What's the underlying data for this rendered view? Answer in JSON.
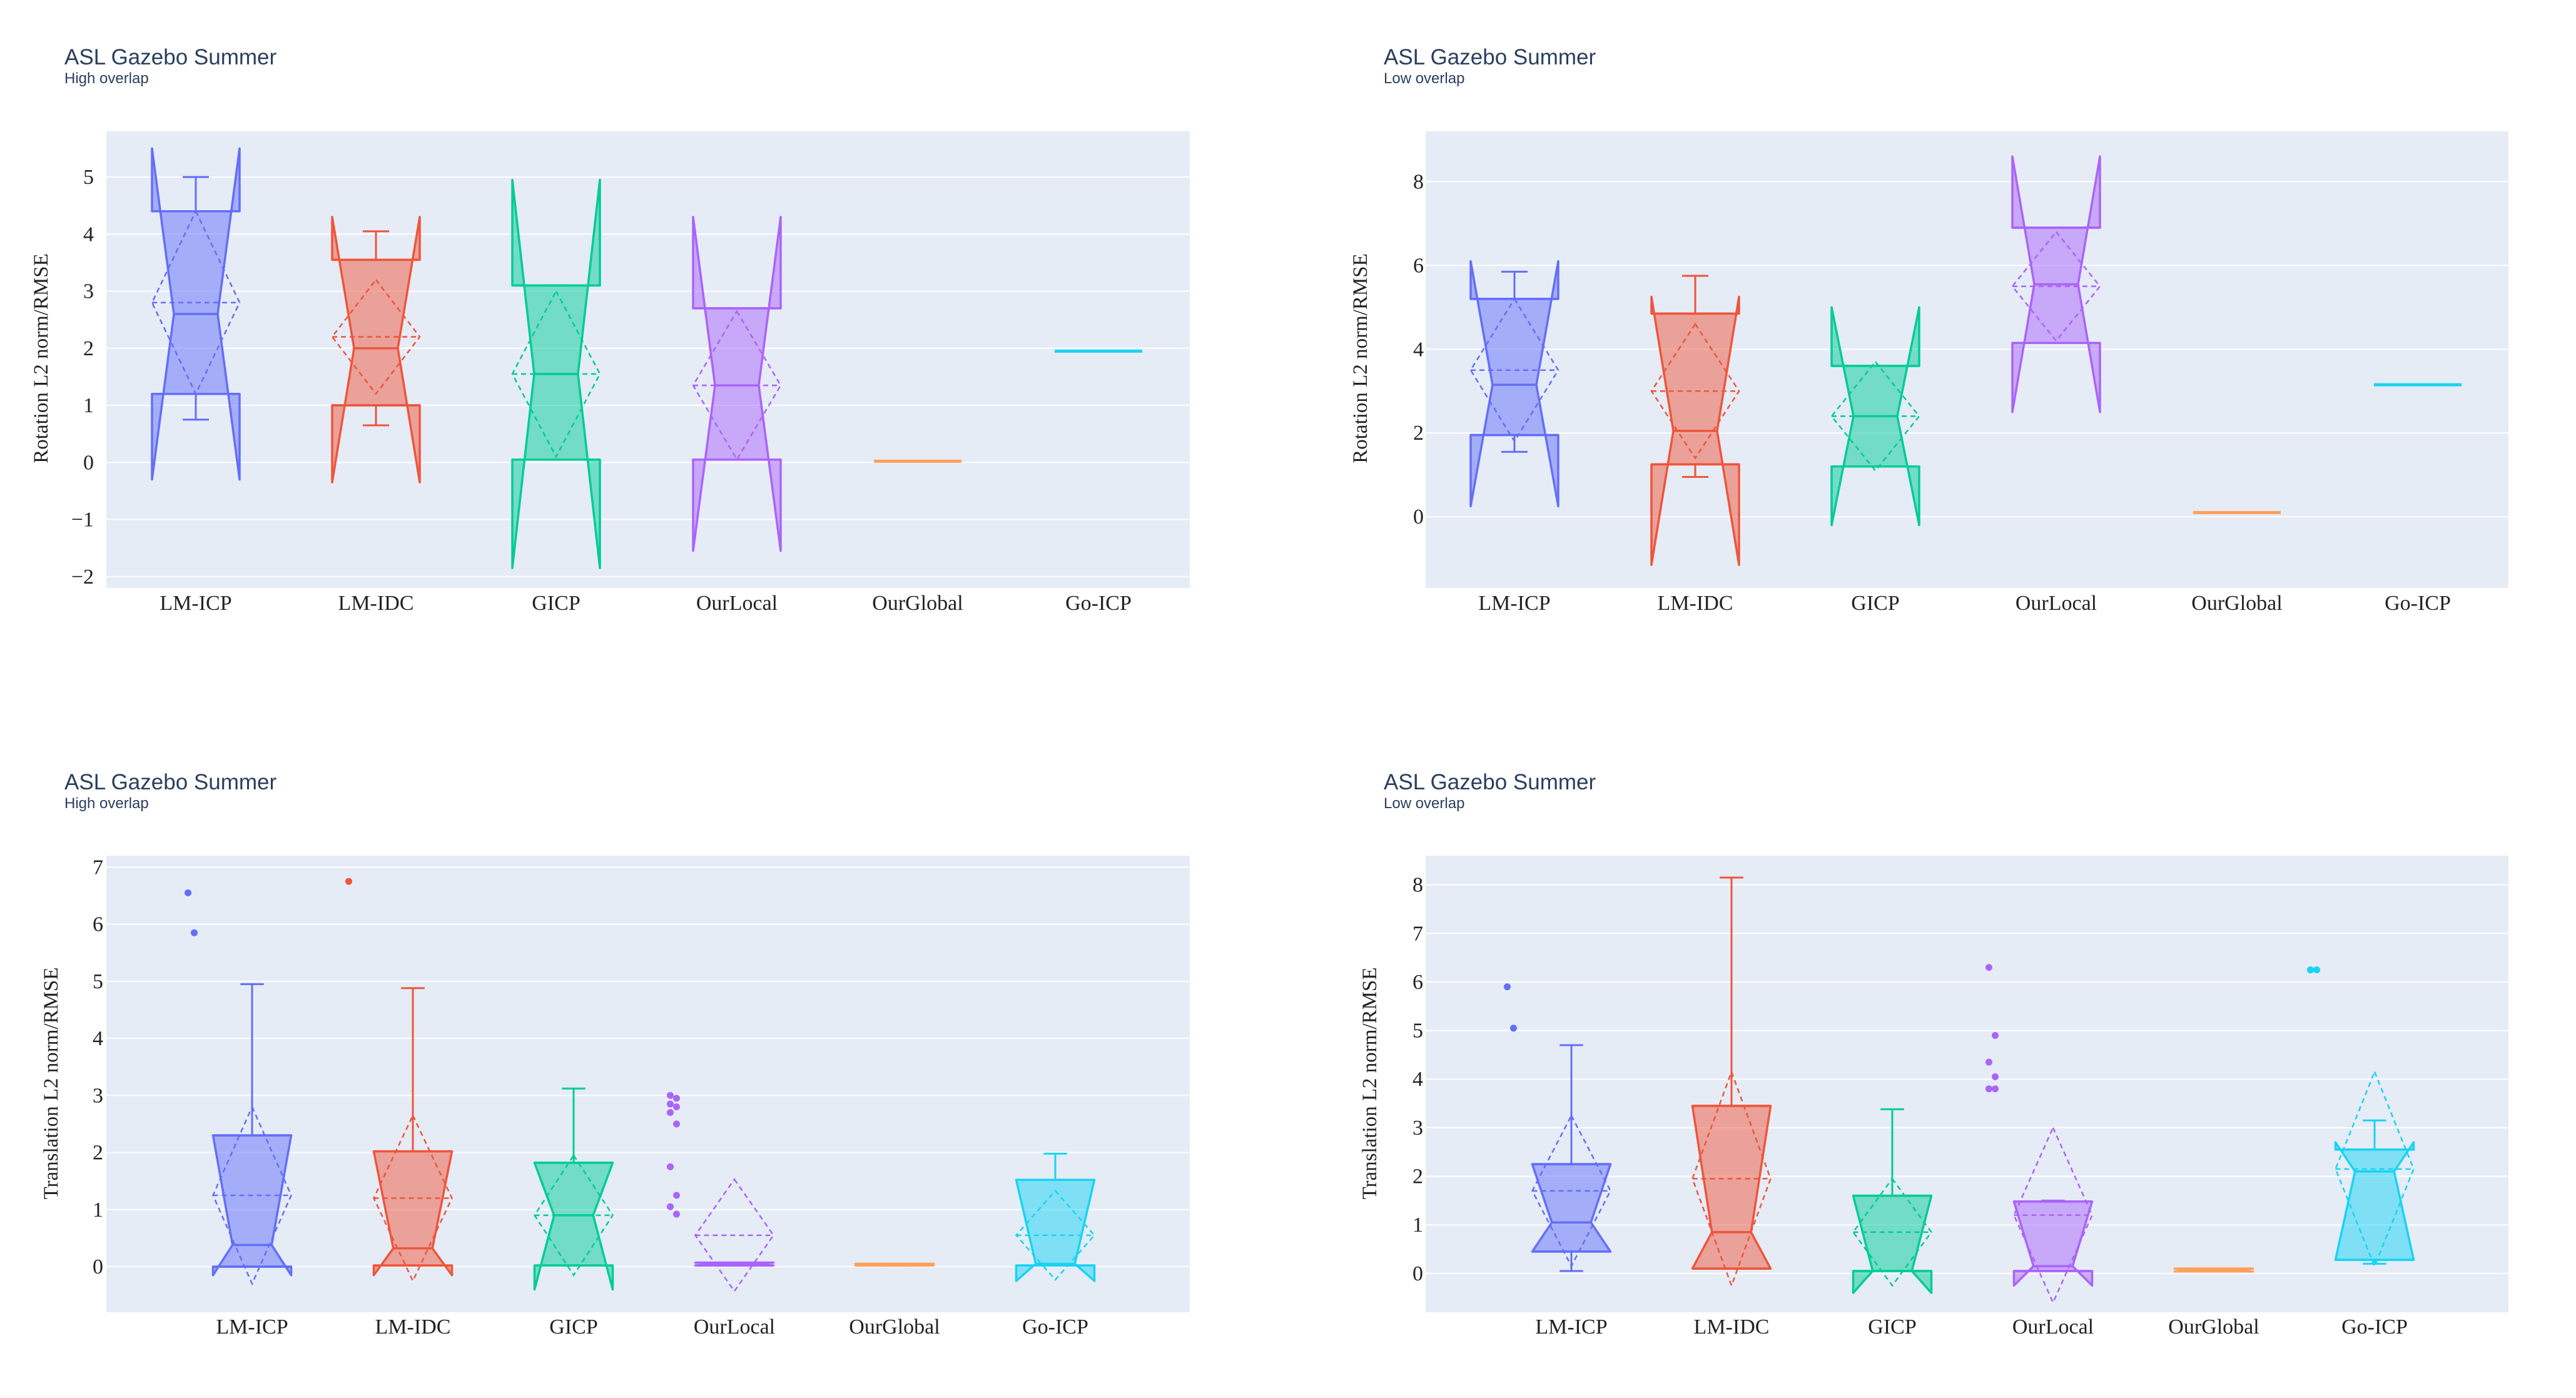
{
  "colors": {
    "plot_bg": "#e5ecf6",
    "grid": "#ffffff",
    "LM-ICP": "#636efa",
    "LM-IDC": "#ef553b",
    "GICP": "#00cc96",
    "OurLocal": "#ab63fa",
    "OurGlobal": "#ffa15a",
    "Go-ICP": "#19d3f3"
  },
  "chart_data": [
    {
      "type": "box",
      "title": "ASL Gazebo Summer",
      "subtitle": "High overlap",
      "ylabel": "Rotation L2 norm/RMSE",
      "ylim": [
        -2.2,
        5.8
      ],
      "yticks": [
        5,
        4,
        3,
        2,
        1,
        0,
        -1,
        -2
      ],
      "ytick_labels": [
        "5",
        "4",
        "3",
        "2",
        "1",
        "0",
        "−1",
        "−2"
      ],
      "categories": [
        "LM-ICP",
        "LM-IDC",
        "GICP",
        "OurLocal",
        "OurGlobal",
        "Go-ICP"
      ],
      "series": [
        {
          "name": "LM-ICP",
          "q1": 1.2,
          "median": 2.6,
          "q3": 4.4,
          "lowerfence": 0.75,
          "upperfence": 5.0,
          "notch_low": -0.3,
          "notch_high": 5.5,
          "mean": 2.8,
          "sd": 1.6,
          "outliers": []
        },
        {
          "name": "LM-IDC",
          "q1": 1.0,
          "median": 2.0,
          "q3": 3.55,
          "lowerfence": 0.65,
          "upperfence": 4.05,
          "notch_low": -0.35,
          "notch_high": 4.3,
          "mean": 2.2,
          "sd": 1.0,
          "outliers": []
        },
        {
          "name": "GICP",
          "q1": 0.05,
          "median": 1.55,
          "q3": 3.1,
          "lowerfence": 0.05,
          "upperfence": 3.1,
          "notch_low": -1.85,
          "notch_high": 4.95,
          "mean": 1.55,
          "sd": 1.45,
          "outliers": []
        },
        {
          "name": "OurLocal",
          "q1": 0.05,
          "median": 1.35,
          "q3": 2.7,
          "lowerfence": 0.05,
          "upperfence": 2.7,
          "notch_low": -1.55,
          "notch_high": 4.3,
          "mean": 1.35,
          "sd": 1.3,
          "outliers": []
        },
        {
          "name": "OurGlobal",
          "q1": 0.02,
          "median": 0.02,
          "q3": 0.02,
          "lowerfence": 0.02,
          "upperfence": 0.02,
          "notch_low": 0.02,
          "notch_high": 0.02,
          "mean": 0.02,
          "sd": 0,
          "outliers": []
        },
        {
          "name": "Go-ICP",
          "q1": 1.95,
          "median": 1.95,
          "q3": 1.95,
          "lowerfence": 1.95,
          "upperfence": 1.95,
          "notch_low": 1.95,
          "notch_high": 1.95,
          "mean": 1.95,
          "sd": 0,
          "outliers": []
        }
      ]
    },
    {
      "type": "box",
      "title": "ASL Gazebo Summer",
      "subtitle": "Low overlap",
      "ylabel": "Rotation L2 norm/RMSE",
      "ylim": [
        -1.7,
        9.2
      ],
      "yticks": [
        8,
        6,
        4,
        2,
        0
      ],
      "ytick_labels": [
        "8",
        "6",
        "4",
        "2",
        "0"
      ],
      "categories": [
        "LM-ICP",
        "LM-IDC",
        "GICP",
        "OurLocal",
        "OurGlobal",
        "Go-ICP"
      ],
      "series": [
        {
          "name": "LM-ICP",
          "q1": 1.95,
          "median": 3.15,
          "q3": 5.2,
          "lowerfence": 1.55,
          "upperfence": 5.85,
          "notch_low": 0.25,
          "notch_high": 6.1,
          "mean": 3.5,
          "sd": 1.7,
          "outliers": []
        },
        {
          "name": "LM-IDC",
          "q1": 1.25,
          "median": 2.05,
          "q3": 4.85,
          "lowerfence": 0.95,
          "upperfence": 5.75,
          "notch_low": -1.15,
          "notch_high": 5.25,
          "mean": 3.0,
          "sd": 1.6,
          "outliers": []
        },
        {
          "name": "GICP",
          "q1": 1.2,
          "median": 2.4,
          "q3": 3.6,
          "lowerfence": 1.2,
          "upperfence": 3.6,
          "notch_low": -0.2,
          "notch_high": 5.0,
          "mean": 2.4,
          "sd": 1.3,
          "outliers": []
        },
        {
          "name": "OurLocal",
          "q1": 4.15,
          "median": 5.55,
          "q3": 6.9,
          "lowerfence": 4.15,
          "upperfence": 6.9,
          "notch_low": 2.5,
          "notch_high": 8.6,
          "mean": 5.5,
          "sd": 1.3,
          "outliers": []
        },
        {
          "name": "OurGlobal",
          "q1": 0.1,
          "median": 0.1,
          "q3": 0.1,
          "lowerfence": 0.1,
          "upperfence": 0.1,
          "notch_low": 0.1,
          "notch_high": 0.1,
          "mean": 0.1,
          "sd": 0,
          "outliers": []
        },
        {
          "name": "Go-ICP",
          "q1": 3.15,
          "median": 3.15,
          "q3": 3.15,
          "lowerfence": 3.15,
          "upperfence": 3.15,
          "notch_low": 3.15,
          "notch_high": 3.15,
          "mean": 3.15,
          "sd": 0,
          "outliers": []
        }
      ]
    },
    {
      "type": "box",
      "title": "ASL Gazebo Summer",
      "subtitle": "High overlap",
      "ylabel": "Translation L2 norm/RMSE",
      "ylim": [
        -0.8,
        7.2
      ],
      "yticks": [
        7,
        6,
        5,
        4,
        3,
        2,
        1,
        0
      ],
      "ytick_labels": [
        "7",
        "6",
        "5",
        "4",
        "3",
        "2",
        "1",
        "0"
      ],
      "categories": [
        "LM-ICP",
        "LM-IDC",
        "GICP",
        "OurLocal",
        "OurGlobal",
        "Go-ICP"
      ],
      "series": [
        {
          "name": "LM-ICP",
          "q1": 0.0,
          "median": 0.38,
          "q3": 2.3,
          "lowerfence": 0.0,
          "upperfence": 4.95,
          "notch_low": -0.15,
          "notch_high": 0.95,
          "mean": 1.25,
          "sd": 1.55,
          "outliers": [
            6.55,
            5.85
          ]
        },
        {
          "name": "LM-IDC",
          "q1": 0.02,
          "median": 0.32,
          "q3": 2.02,
          "lowerfence": 0.02,
          "upperfence": 4.88,
          "notch_low": -0.15,
          "notch_high": 0.8,
          "mean": 1.2,
          "sd": 1.45,
          "outliers": [
            6.75
          ]
        },
        {
          "name": "GICP",
          "q1": 0.02,
          "median": 0.9,
          "q3": 1.82,
          "lowerfence": 0.02,
          "upperfence": 3.12,
          "notch_low": -0.4,
          "notch_high": 0.4,
          "mean": 0.9,
          "sd": 1.05,
          "outliers": []
        },
        {
          "name": "OurLocal",
          "q1": 0.02,
          "median": 0.05,
          "q3": 0.07,
          "lowerfence": 0.02,
          "upperfence": 0.07,
          "notch_low": 0.02,
          "notch_high": 0.07,
          "mean": 0.55,
          "sd": 0.98,
          "outliers": [
            3.0,
            2.95,
            2.85,
            2.8,
            2.7,
            2.5,
            1.75,
            1.25,
            1.05,
            0.92
          ]
        },
        {
          "name": "OurGlobal",
          "q1": 0.02,
          "median": 0.03,
          "q3": 0.05,
          "lowerfence": 0.02,
          "upperfence": 0.05,
          "notch_low": 0.02,
          "notch_high": 0.05,
          "mean": 0.03,
          "sd": 0,
          "outliers": []
        },
        {
          "name": "Go-ICP",
          "q1": 0.02,
          "median": 0.05,
          "q3": 1.52,
          "lowerfence": 0.02,
          "upperfence": 1.98,
          "notch_low": -0.25,
          "notch_high": 0.45,
          "mean": 0.55,
          "sd": 0.78,
          "outliers": []
        }
      ]
    },
    {
      "type": "box",
      "title": "ASL Gazebo Summer",
      "subtitle": "Low overlap",
      "ylabel": "Translation L2 norm/RMSE",
      "ylim": [
        -0.8,
        8.6
      ],
      "yticks": [
        8,
        7,
        6,
        5,
        4,
        3,
        2,
        1,
        0
      ],
      "ytick_labels": [
        "8",
        "7",
        "6",
        "5",
        "4",
        "3",
        "2",
        "1",
        "0"
      ],
      "categories": [
        "LM-ICP",
        "LM-IDC",
        "GICP",
        "OurLocal",
        "OurGlobal",
        "Go-ICP"
      ],
      "series": [
        {
          "name": "LM-ICP",
          "q1": 0.45,
          "median": 1.05,
          "q3": 2.25,
          "lowerfence": 0.05,
          "upperfence": 4.7,
          "notch_low": 0.55,
          "notch_high": 1.6,
          "mean": 1.7,
          "sd": 1.55,
          "outliers": [
            5.9,
            5.05
          ]
        },
        {
          "name": "LM-IDC",
          "q1": 0.1,
          "median": 0.85,
          "q3": 3.45,
          "lowerfence": 0.1,
          "upperfence": 8.15,
          "notch_low": 0.1,
          "notch_high": 1.85,
          "mean": 1.95,
          "sd": 2.2,
          "outliers": []
        },
        {
          "name": "GICP",
          "q1": 0.05,
          "median": 0.05,
          "q3": 1.6,
          "lowerfence": 0.05,
          "upperfence": 3.38,
          "notch_low": -0.4,
          "notch_high": 0.4,
          "mean": 0.85,
          "sd": 1.1,
          "outliers": []
        },
        {
          "name": "OurLocal",
          "q1": 0.05,
          "median": 0.15,
          "q3": 1.48,
          "lowerfence": 0.05,
          "upperfence": 1.5,
          "notch_low": -0.25,
          "notch_high": 0.6,
          "mean": 1.2,
          "sd": 1.8,
          "outliers": [
            6.3,
            4.9,
            4.35,
            4.05,
            3.8,
            3.8
          ]
        },
        {
          "name": "OurGlobal",
          "q1": 0.04,
          "median": 0.07,
          "q3": 0.1,
          "lowerfence": 0.04,
          "upperfence": 0.1,
          "notch_low": 0.04,
          "notch_high": 0.1,
          "mean": 0.07,
          "sd": 0,
          "outliers": []
        },
        {
          "name": "Go-ICP",
          "q1": 0.28,
          "median": 2.1,
          "q3": 2.55,
          "lowerfence": 0.2,
          "upperfence": 3.15,
          "notch_low": 1.5,
          "notch_high": 2.7,
          "mean": 2.15,
          "sd": 2.0,
          "outliers": [
            6.25,
            6.25,
            6.25,
            6.25
          ]
        }
      ]
    }
  ]
}
